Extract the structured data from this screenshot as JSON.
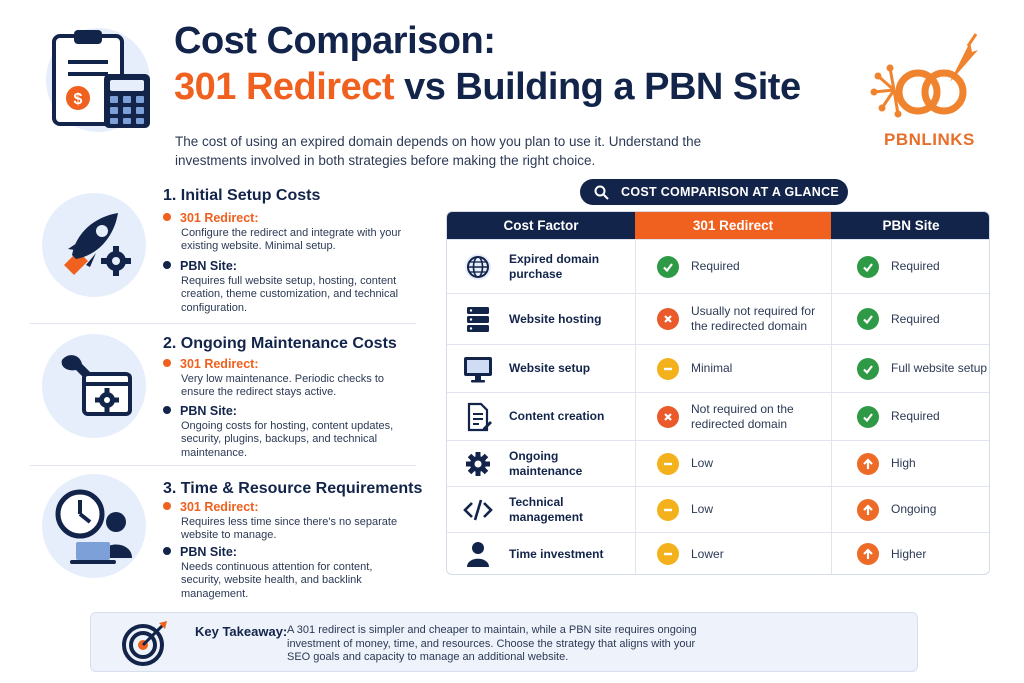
{
  "header": {
    "title_line1": "Cost Comparison:",
    "title_accent": "301 Redirect",
    "title_rest": " vs Building a PBN Site",
    "intro": "The cost of using an expired domain depends on how you plan to use it. Understand the investments involved in both strategies before making the right choice.",
    "logo_text": "PBNLINKS",
    "icon": "clipboard-calculator-icon"
  },
  "colors": {
    "navy": "#13244a",
    "orange": "#f0601e",
    "green": "#2e9a46",
    "red": "#ea5a2a",
    "yellow": "#f3b21c"
  },
  "sections": [
    {
      "title": "1. Initial Setup Costs",
      "icon": "rocket-gear-icon",
      "redirect_label": "301 Redirect:",
      "redirect_text": "Configure the redirect and integrate with your existing website. Minimal setup.",
      "pbn_label": "PBN Site:",
      "pbn_text": "Requires full website setup, hosting, content creation, theme customization, and technical configuration."
    },
    {
      "title": "2. Ongoing Maintenance Costs",
      "icon": "wrench-window-icon",
      "redirect_label": "301 Redirect:",
      "redirect_text": "Very low maintenance. Periodic checks to ensure the redirect stays active.",
      "pbn_label": "PBN Site:",
      "pbn_text": "Ongoing costs for hosting, content updates, security, plugins, backups, and technical maintenance."
    },
    {
      "title": "3. Time & Resource Requirements",
      "icon": "clock-person-icon",
      "redirect_label": "301 Redirect:",
      "redirect_text": "Requires less time since there's no separate website to manage.",
      "pbn_label": "PBN Site:",
      "pbn_text": "Needs continuous attention for content, security, website health, and backlink management."
    }
  ],
  "glance_title": "COST COMPARISON AT A GLANCE",
  "table": {
    "headers": [
      "Cost Factor",
      "301 Redirect",
      "PBN Site"
    ],
    "rows": [
      {
        "factor": "Expired domain purchase",
        "icon": "globe-icon",
        "redirect": "Required",
        "redirect_status": "check",
        "pbn": "Required",
        "pbn_status": "check"
      },
      {
        "factor": "Website hosting",
        "icon": "server-icon",
        "redirect": "Usually not required for the redirected domain",
        "redirect_status": "cross",
        "pbn": "Required",
        "pbn_status": "check"
      },
      {
        "factor": "Website setup",
        "icon": "monitor-icon",
        "redirect": "Minimal",
        "redirect_status": "minus",
        "pbn": "Full website setup",
        "pbn_status": "check"
      },
      {
        "factor": "Content creation",
        "icon": "document-pen-icon",
        "redirect": "Not required on the redirected domain",
        "redirect_status": "cross",
        "pbn": "Required",
        "pbn_status": "check"
      },
      {
        "factor": "Ongoing maintenance",
        "icon": "gear-icon",
        "redirect": "Low",
        "redirect_status": "minus",
        "pbn": "High",
        "pbn_status": "up"
      },
      {
        "factor": "Technical management",
        "icon": "code-icon",
        "redirect": "Low",
        "redirect_status": "minus",
        "pbn": "Ongoing",
        "pbn_status": "up"
      },
      {
        "factor": "Time investment",
        "icon": "person-icon",
        "redirect": "Lower",
        "redirect_status": "minus",
        "pbn": "Higher",
        "pbn_status": "up"
      }
    ]
  },
  "takeaway": {
    "label": "Key Takeaway:",
    "text": "A 301 redirect is simpler and cheaper to maintain, while a PBN site requires ongoing investment of money, time, and resources. Choose the strategy that aligns with your SEO goals and capacity to manage an additional website.",
    "icon": "target-arrow-icon"
  }
}
